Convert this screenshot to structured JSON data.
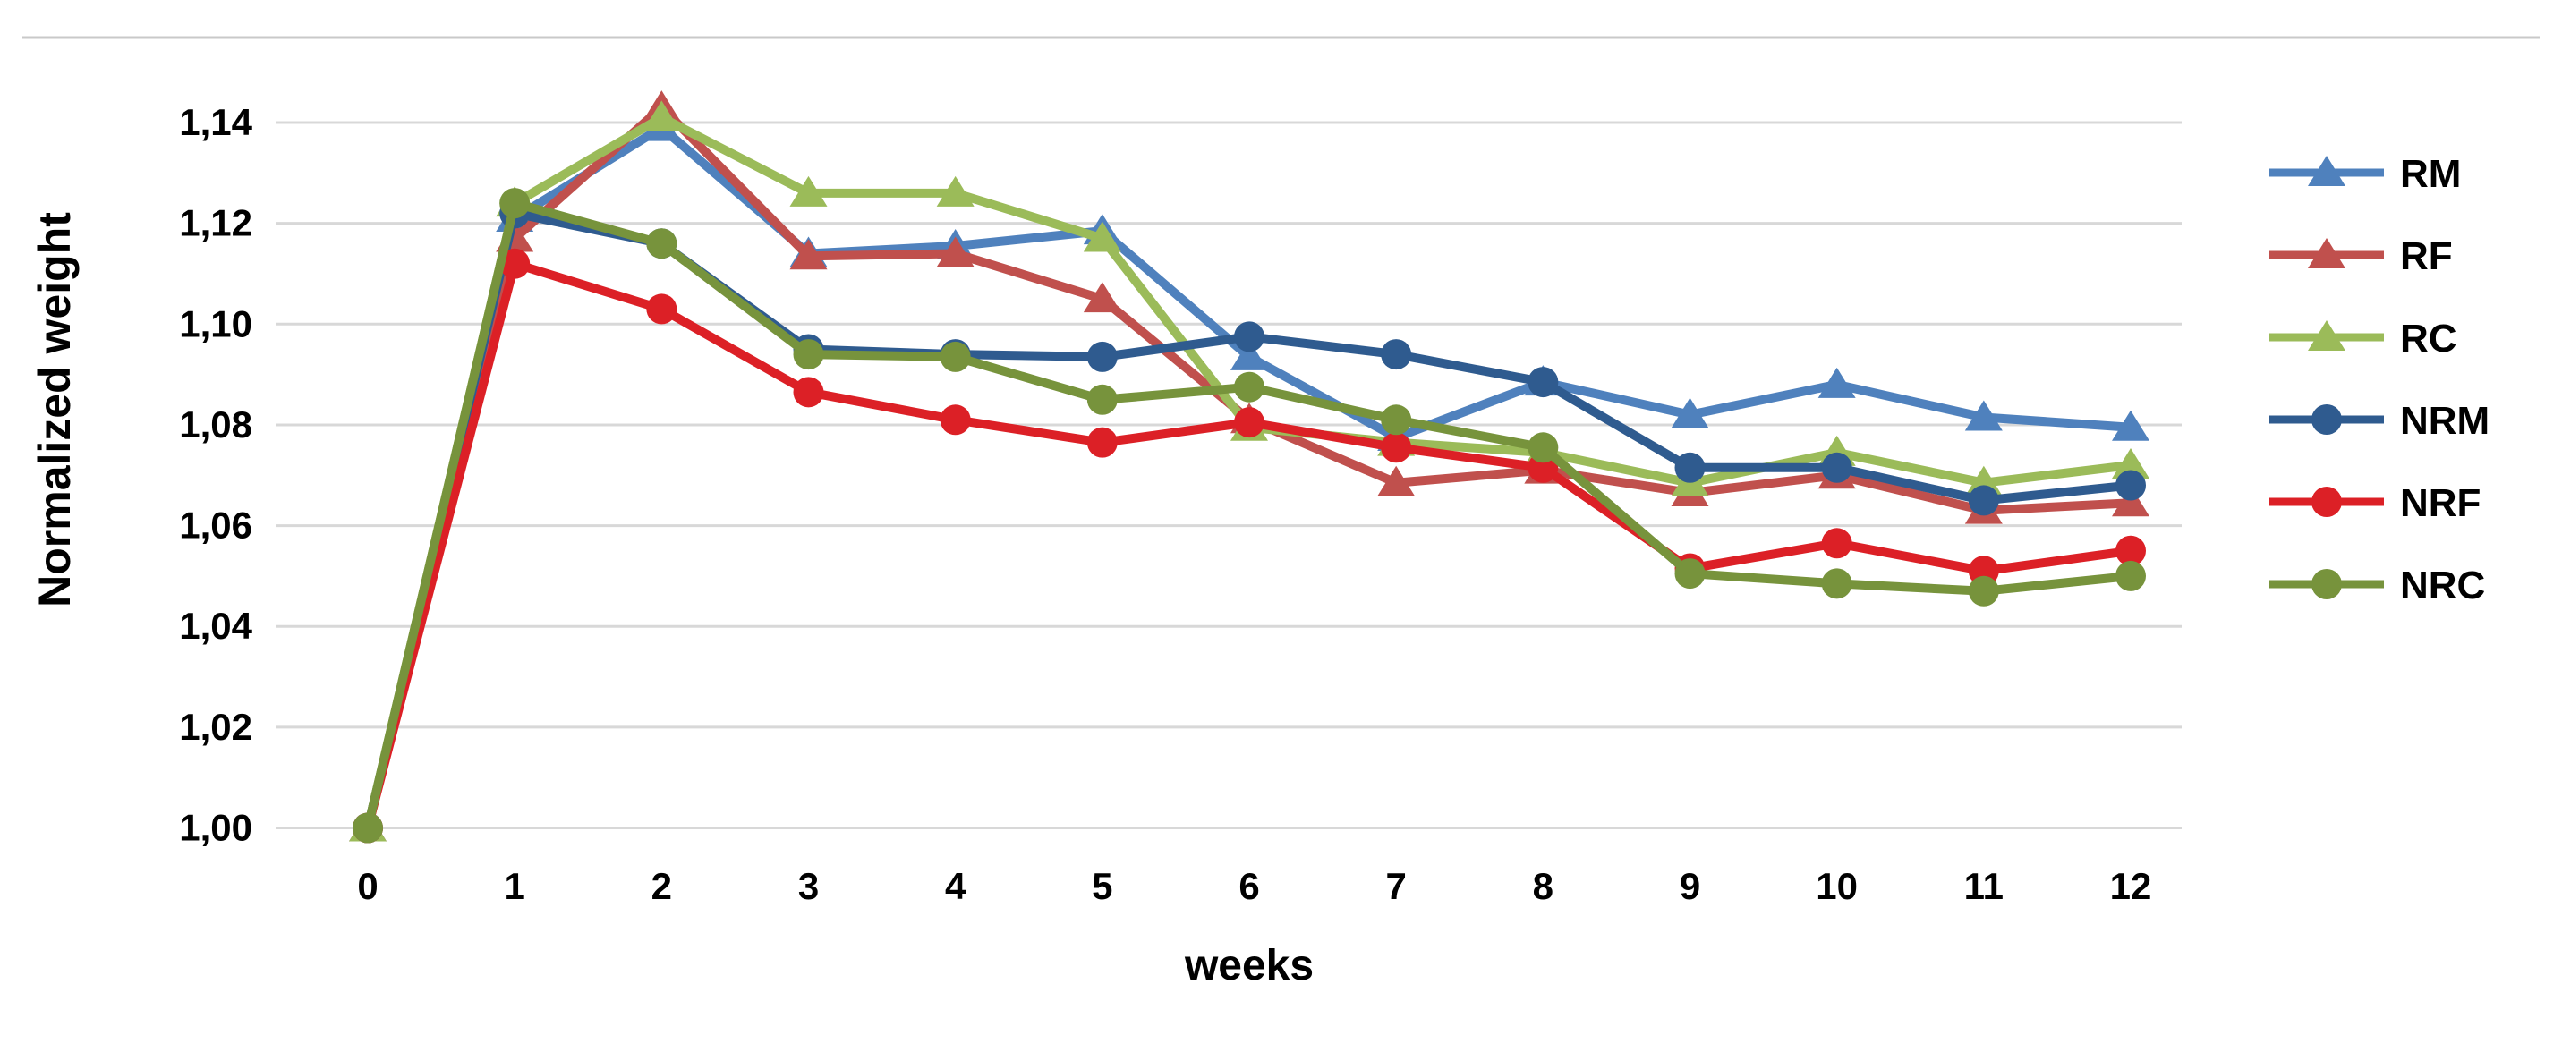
{
  "figure": {
    "background": "#ffffff",
    "top_rule_color": "#c9c9c9",
    "gridline_color": "#d8d8d8"
  },
  "chart_data": {
    "type": "line",
    "title": "",
    "xlabel": "weeks",
    "ylabel": "Normalized weight",
    "x": [
      0,
      1,
      2,
      3,
      4,
      5,
      6,
      7,
      8,
      9,
      10,
      11,
      12
    ],
    "xtick_labels": [
      "0",
      "1",
      "2",
      "3",
      "4",
      "5",
      "6",
      "7",
      "8",
      "9",
      "10",
      "11",
      "12"
    ],
    "yticks": [
      1.0,
      1.02,
      1.04,
      1.06,
      1.08,
      1.1,
      1.12,
      1.14
    ],
    "ytick_labels": [
      "1,00",
      "1,02",
      "1,04",
      "1,06",
      "1,08",
      "1,10",
      "1,12",
      "1,14"
    ],
    "ylim": [
      1.0,
      1.145
    ],
    "grid": true,
    "legend_position": "right",
    "decimal_separator": ",",
    "series": [
      {
        "name": "RM",
        "color": "#4F81BD",
        "marker": "triangle",
        "values": [
          1.0,
          1.121,
          1.139,
          1.114,
          1.1155,
          1.1185,
          1.0935,
          1.0775,
          1.0885,
          1.082,
          1.088,
          1.0815,
          1.0795
        ]
      },
      {
        "name": "RF",
        "color": "#C0504D",
        "marker": "triangle",
        "values": [
          1.0,
          1.117,
          1.143,
          1.1135,
          1.114,
          1.105,
          1.081,
          1.0685,
          1.071,
          1.0665,
          1.07,
          1.063,
          1.0645
        ]
      },
      {
        "name": "RC",
        "color": "#9BBB59",
        "marker": "triangle",
        "values": [
          1.0,
          1.124,
          1.141,
          1.126,
          1.126,
          1.117,
          1.0795,
          1.0765,
          1.0745,
          1.0685,
          1.0745,
          1.0685,
          1.072
        ]
      },
      {
        "name": "NRM",
        "color": "#2F5B8F",
        "marker": "circle",
        "values": [
          1.0,
          1.122,
          1.116,
          1.095,
          1.094,
          1.0935,
          1.0975,
          1.094,
          1.0885,
          1.0715,
          1.0715,
          1.065,
          1.068
        ]
      },
      {
        "name": "NRF",
        "color": "#DC2026",
        "marker": "circle",
        "values": [
          1.0,
          1.112,
          1.103,
          1.0865,
          1.081,
          1.0765,
          1.0805,
          1.0755,
          1.0715,
          1.0515,
          1.0565,
          1.051,
          1.055
        ]
      },
      {
        "name": "NRC",
        "color": "#77933C",
        "marker": "circle",
        "values": [
          1.0,
          1.124,
          1.116,
          1.094,
          1.0935,
          1.085,
          1.0875,
          1.081,
          1.0755,
          1.0505,
          1.0485,
          1.047,
          1.05
        ]
      }
    ]
  }
}
